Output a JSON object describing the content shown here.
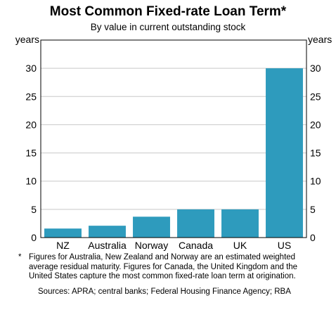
{
  "chart_data": {
    "type": "bar",
    "title": "Most Common Fixed-rate Loan Term*",
    "subtitle": "By value in current outstanding stock",
    "ylabel_left": "years",
    "ylabel_right": "years",
    "categories": [
      "NZ",
      "Australia",
      "Norway",
      "Canada",
      "UK",
      "US"
    ],
    "values": [
      1.6,
      2.1,
      3.7,
      5.0,
      5.0,
      30.0
    ],
    "ylim": [
      0,
      35
    ],
    "yticks": [
      0,
      5,
      10,
      15,
      20,
      25,
      30
    ],
    "grid": true,
    "bar_color": "#2e9bbd",
    "grid_color": "#c8c8c8"
  },
  "notes": {
    "star": "*",
    "footnote": "Figures for Australia, New Zealand and Norway are an estimated weighted average residual maturity. Figures for Canada, the United Kingdom and the United States capture the most common fixed-rate loan term at origination.",
    "sources": "Sources: APRA; central banks; Federal Housing Finance Agency; RBA"
  }
}
